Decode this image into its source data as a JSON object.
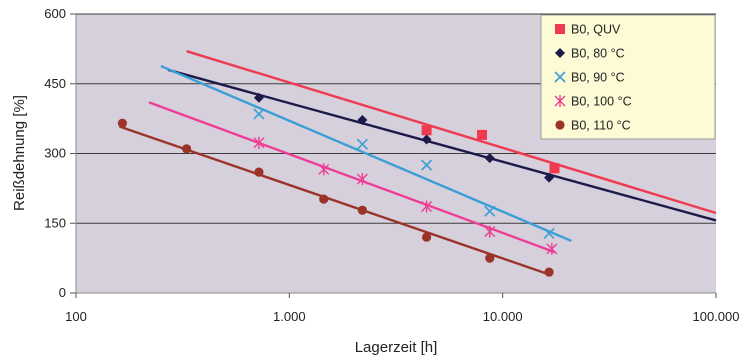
{
  "chart_data": {
    "type": "scatter",
    "x_scale": "log",
    "xlim": [
      100,
      100000
    ],
    "ylim": [
      0,
      600
    ],
    "xlabel": "Lagerzeit [h]",
    "ylabel": "Reißdehnung [%]",
    "x_ticks": [
      {
        "value": 100,
        "label": "100"
      },
      {
        "value": 1000,
        "label": "1.000"
      },
      {
        "value": 10000,
        "label": "10.000"
      },
      {
        "value": 100000,
        "label": "100.000"
      }
    ],
    "y_ticks": [
      {
        "value": 0,
        "label": "0"
      },
      {
        "value": 150,
        "label": "150"
      },
      {
        "value": 300,
        "label": "300"
      },
      {
        "value": 450,
        "label": "450"
      },
      {
        "value": 600,
        "label": "600"
      }
    ],
    "grid": "horizontal",
    "legend_position": "top-right",
    "plot_background": "#d6cfdc",
    "legend_background": "#fdfbd6",
    "series": [
      {
        "name": "B0, QUV",
        "color": "#ef3a4f",
        "marker": "square",
        "points": [
          [
            4400,
            350
          ],
          [
            8000,
            340
          ],
          [
            17500,
            268
          ]
        ],
        "trend": [
          [
            330,
            520
          ],
          [
            100000,
            172
          ]
        ]
      },
      {
        "name": "B0, 80 °C",
        "color": "#1c1a4a",
        "marker": "diamond",
        "points": [
          [
            720,
            420
          ],
          [
            2200,
            372
          ],
          [
            4400,
            330
          ],
          [
            8700,
            290
          ],
          [
            16500,
            248
          ]
        ],
        "trend": [
          [
            270,
            480
          ],
          [
            100000,
            156
          ]
        ]
      },
      {
        "name": "B0, 90 °C",
        "color": "#3a9fd6",
        "marker": "x",
        "points": [
          [
            720,
            385
          ],
          [
            2200,
            320
          ],
          [
            4400,
            275
          ],
          [
            8700,
            176
          ],
          [
            16500,
            128
          ]
        ],
        "trend": [
          [
            250,
            488
          ],
          [
            21000,
            112
          ]
        ]
      },
      {
        "name": "B0, 100 °C",
        "color": "#ef3d95",
        "marker": "asterisk",
        "points": [
          [
            720,
            323
          ],
          [
            1450,
            266
          ],
          [
            2200,
            245
          ],
          [
            4400,
            186
          ],
          [
            8700,
            132
          ],
          [
            17000,
            95
          ]
        ],
        "trend": [
          [
            220,
            410
          ],
          [
            17500,
            88
          ]
        ]
      },
      {
        "name": "B0, 110 °C",
        "color": "#9b3328",
        "marker": "circle",
        "points": [
          [
            165,
            365
          ],
          [
            330,
            310
          ],
          [
            720,
            260
          ],
          [
            1450,
            202
          ],
          [
            2200,
            178
          ],
          [
            4400,
            120
          ],
          [
            8700,
            75
          ],
          [
            16500,
            45
          ]
        ],
        "trend": [
          [
            160,
            358
          ],
          [
            17000,
            38
          ]
        ]
      }
    ]
  }
}
